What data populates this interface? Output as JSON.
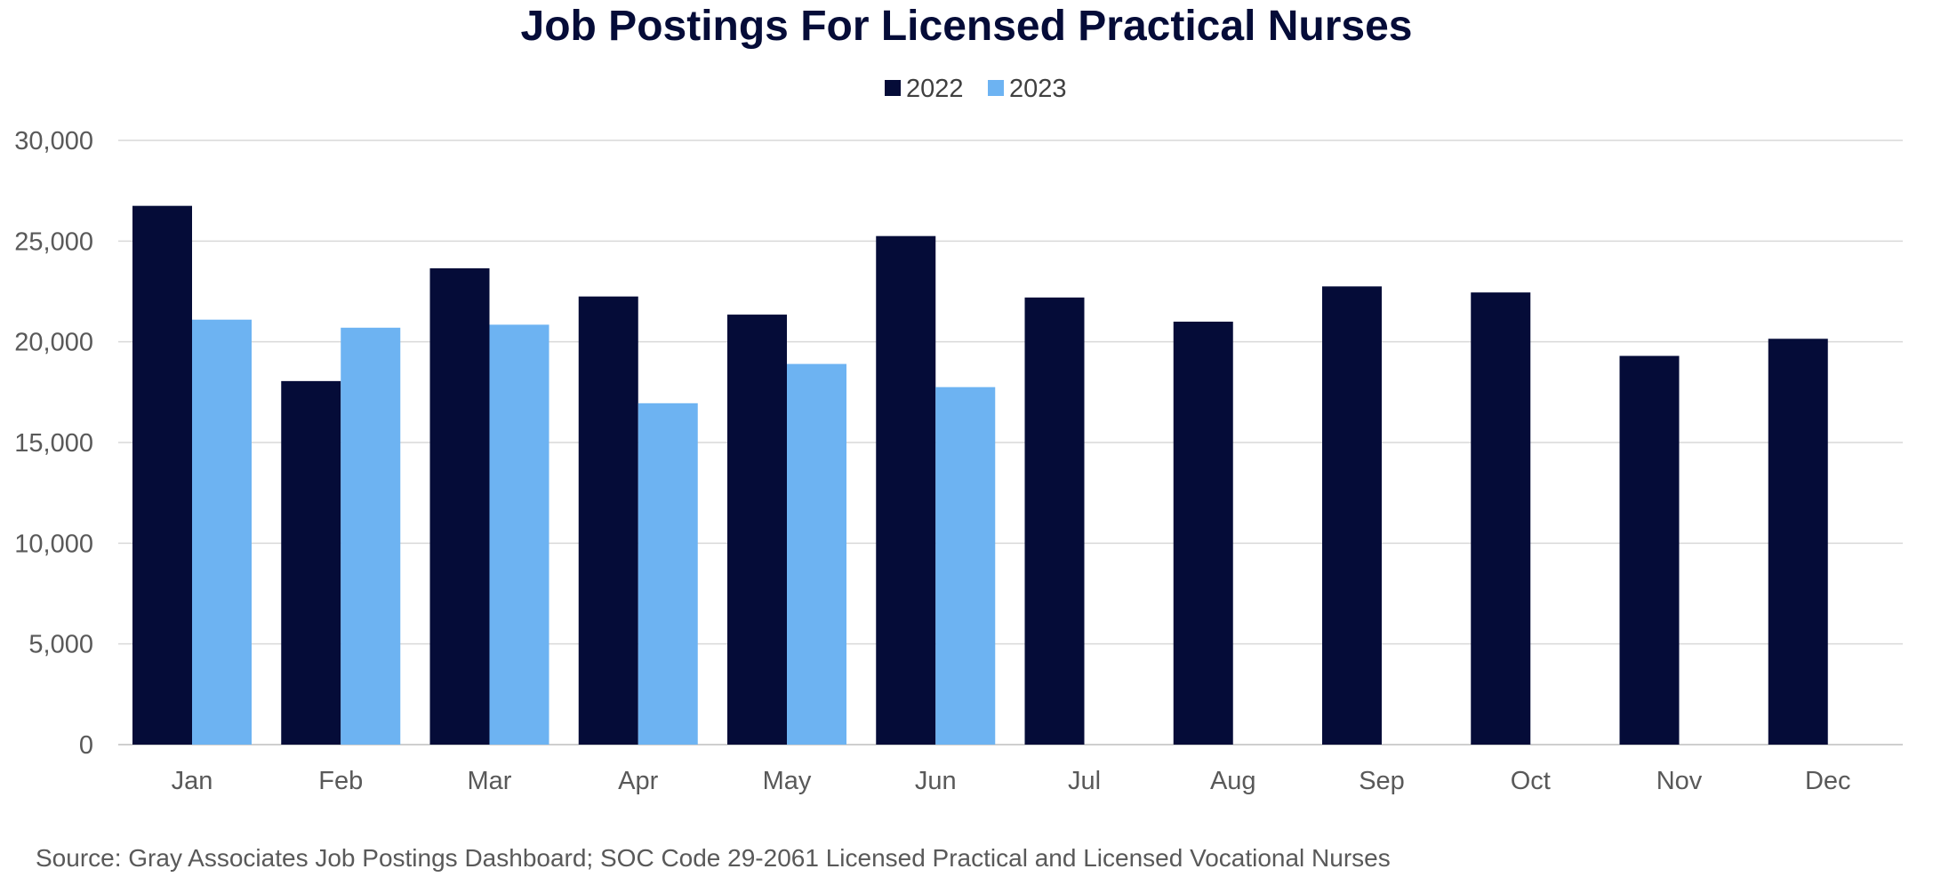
{
  "chart_data": {
    "type": "bar",
    "title": "Job Postings For Licensed Practical Nurses",
    "categories": [
      "Jan",
      "Feb",
      "Mar",
      "Apr",
      "May",
      "Jun",
      "Jul",
      "Aug",
      "Sep",
      "Oct",
      "Nov",
      "Dec"
    ],
    "series": [
      {
        "name": "2022",
        "color": "#050c38",
        "values": [
          26750,
          18050,
          23650,
          22250,
          21350,
          25250,
          22200,
          21000,
          22750,
          22450,
          19300,
          20150
        ]
      },
      {
        "name": "2023",
        "color": "#6db3f2",
        "values": [
          21100,
          20700,
          20850,
          16950,
          18900,
          17750,
          null,
          null,
          null,
          null,
          null,
          null
        ]
      }
    ],
    "ylim": [
      0,
      30000
    ],
    "yticks": [
      0,
      5000,
      10000,
      15000,
      20000,
      25000,
      30000
    ],
    "ytick_labels": [
      "0",
      "5,000",
      "10,000",
      "15,000",
      "20,000",
      "25,000",
      "30,000"
    ],
    "xlabel": "",
    "ylabel": "",
    "grid": true,
    "legend_position": "top-center",
    "source": "Source: Gray Associates Job Postings Dashboard; SOC Code 29-2061 Licensed Practical and Licensed Vocational Nurses"
  }
}
